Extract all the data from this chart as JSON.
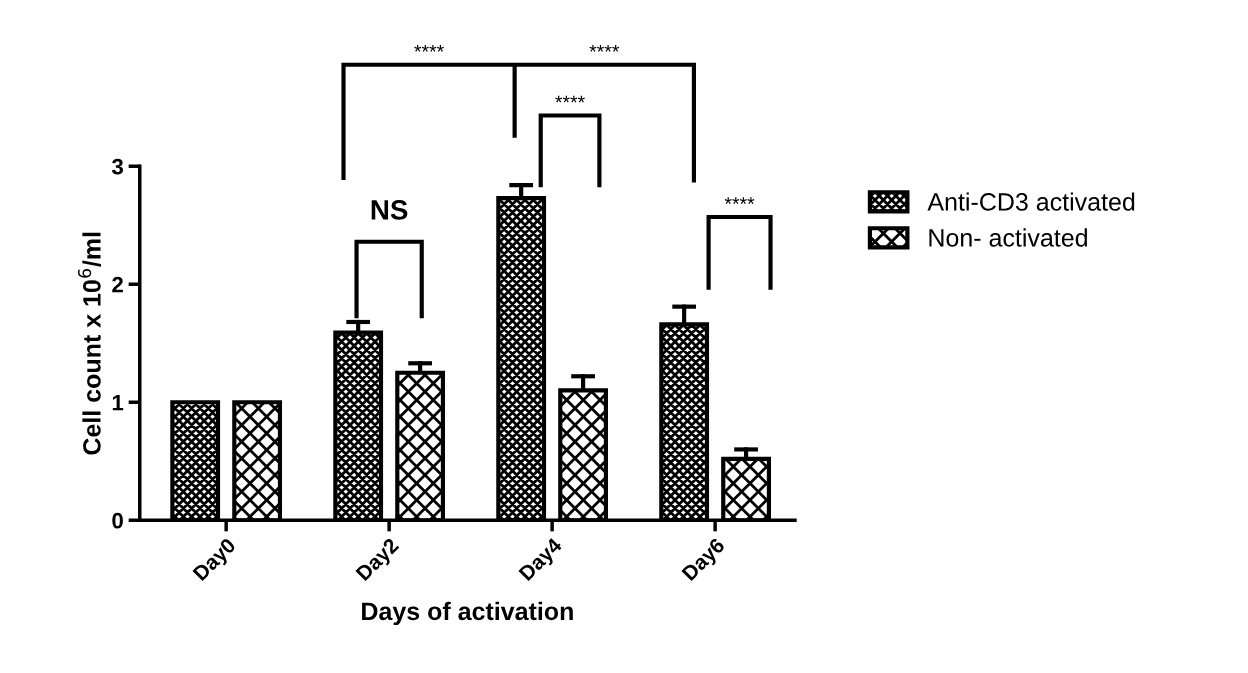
{
  "chart_data": {
    "type": "bar",
    "ylabel": "Cell count x 10$^{6}$/ml",
    "xlabel": "Days of activation",
    "categories": [
      "Day0",
      "Day2",
      "Day4",
      "Day6"
    ],
    "series": [
      {
        "name": "Anti-CD3 activated",
        "color": "#000000",
        "values": [
          1.0,
          1.59,
          2.73,
          1.66
        ],
        "errors": [
          null,
          [
            1.59,
            1.68
          ],
          [
            2.73,
            2.84
          ],
          [
            1.66,
            1.81
          ]
        ]
      },
      {
        "name": "Non- activated",
        "color": "#000000",
        "values": [
          1.0,
          1.25,
          1.1,
          0.52
        ],
        "errors": [
          null,
          [
            1.25,
            1.33
          ],
          [
            1.1,
            1.22
          ],
          [
            0.52,
            0.6
          ]
        ]
      }
    ],
    "ylim": [
      0,
      3
    ],
    "yticks": [
      0,
      1,
      2,
      3
    ],
    "grid": false,
    "legend": "right",
    "annotations": [
      "****",
      "****",
      "****",
      "NS",
      "****"
    ]
  }
}
